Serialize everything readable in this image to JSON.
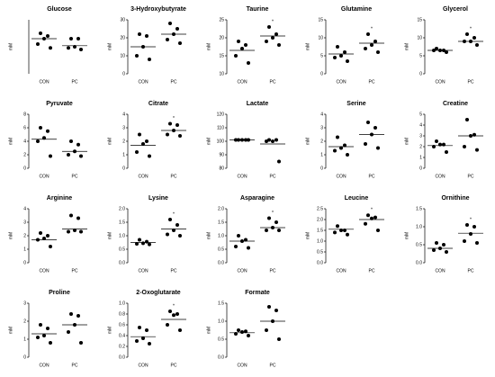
{
  "chart_data": [
    {
      "type": "dotplot",
      "title": "Glucose",
      "ylabel": "mM",
      "categories": [
        "CON",
        "PC"
      ],
      "values": [
        [
          7.5,
          7,
          6.5,
          5.5,
          4.8
        ],
        [
          6.5,
          6.5,
          5,
          4.8,
          4.5
        ]
      ],
      "means": [
        6.5,
        5.2
      ],
      "ylim": [
        0,
        10
      ]
    },
    {
      "type": "dotplot",
      "title": "3-Hydroxybutyrate",
      "ylabel": "mM",
      "categories": [
        "CON",
        "PC"
      ],
      "values": [
        [
          22,
          21,
          15,
          10,
          8
        ],
        [
          28,
          25,
          22,
          19,
          17
        ]
      ],
      "means": [
        15,
        22
      ],
      "ylim": [
        0,
        30
      ],
      "yticks": [
        0,
        10,
        20,
        30
      ]
    },
    {
      "type": "dotplot",
      "title": "Taurine",
      "ylabel": "mM",
      "categories": [
        "CON",
        "PC"
      ],
      "values": [
        [
          19,
          18,
          17,
          15,
          13
        ],
        [
          23,
          21,
          20,
          19,
          18
        ]
      ],
      "means": [
        16.5,
        20.5
      ],
      "ylim": [
        10,
        25
      ],
      "yticks": [
        10,
        15,
        20,
        25
      ],
      "annotation": "*"
    },
    {
      "type": "dotplot",
      "title": "Glutamine",
      "ylabel": "mM",
      "categories": [
        "CON",
        "PC"
      ],
      "values": [
        [
          7.5,
          6,
          5,
          4.5,
          3.5
        ],
        [
          11,
          9,
          8,
          7,
          6
        ]
      ],
      "means": [
        5.5,
        8.5
      ],
      "ylim": [
        0,
        15
      ],
      "yticks": [
        0,
        5,
        10,
        15
      ],
      "annotation": "*"
    },
    {
      "type": "dotplot",
      "title": "Glycerol",
      "ylabel": "mM",
      "categories": [
        "CON",
        "PC"
      ],
      "values": [
        [
          7,
          6.5,
          6.5,
          6.5,
          6
        ],
        [
          11,
          10,
          9,
          9,
          8
        ]
      ],
      "means": [
        6.5,
        9
      ],
      "ylim": [
        0,
        15
      ],
      "yticks": [
        0,
        5,
        10,
        15
      ],
      "annotation": "*"
    },
    {
      "type": "dotplot",
      "title": "Pyruvate",
      "ylabel": "mM",
      "categories": [
        "CON",
        "PC"
      ],
      "values": [
        [
          6,
          5.5,
          4.5,
          4,
          1.8
        ],
        [
          4,
          3.5,
          2.5,
          2,
          1.8
        ]
      ],
      "means": [
        4.3,
        2.5
      ],
      "ylim": [
        0,
        8
      ],
      "yticks": [
        0,
        2,
        4,
        6,
        8
      ]
    },
    {
      "type": "dotplot",
      "title": "Citrate",
      "ylabel": "mM",
      "categories": [
        "CON",
        "PC"
      ],
      "values": [
        [
          2.5,
          2,
          1.8,
          1.2,
          0.9
        ],
        [
          3.3,
          3.2,
          2.8,
          2.5,
          2.4
        ]
      ],
      "means": [
        1.7,
        2.8
      ],
      "ylim": [
        0,
        4
      ],
      "yticks": [
        0,
        1,
        2,
        3,
        4
      ],
      "annotation": "*"
    },
    {
      "type": "dotplot",
      "title": "Lactate",
      "ylabel": "mM",
      "categories": [
        "CON",
        "PC"
      ],
      "values": [
        [
          101,
          101,
          101,
          101,
          101
        ],
        [
          101,
          101,
          100,
          100,
          85
        ]
      ],
      "means": [
        101,
        98
      ],
      "ylim": [
        80,
        120
      ],
      "yticks": [
        80,
        90,
        100,
        110,
        120
      ]
    },
    {
      "type": "dotplot",
      "title": "Serine",
      "ylabel": "mM",
      "categories": [
        "CON",
        "PC"
      ],
      "values": [
        [
          2.3,
          1.7,
          1.5,
          1.3,
          1
        ],
        [
          3.4,
          3,
          2.5,
          1.8,
          1.5
        ]
      ],
      "means": [
        1.6,
        2.5
      ],
      "ylim": [
        0,
        4
      ],
      "yticks": [
        0,
        1,
        2,
        3,
        4
      ]
    },
    {
      "type": "dotplot",
      "title": "Creatine",
      "ylabel": "mM",
      "categories": [
        "CON",
        "PC"
      ],
      "values": [
        [
          2.5,
          2.2,
          2.2,
          2,
          1.5
        ],
        [
          4.5,
          3.1,
          3,
          2,
          1.7
        ]
      ],
      "means": [
        2.1,
        3
      ],
      "ylim": [
        0,
        5
      ],
      "yticks": [
        0,
        1,
        2,
        3,
        4,
        5
      ]
    },
    {
      "type": "dotplot",
      "title": "Arginine",
      "ylabel": "mM",
      "categories": [
        "CON",
        "PC"
      ],
      "values": [
        [
          2.2,
          2,
          1.8,
          1.7,
          1.2
        ],
        [
          3.5,
          3.3,
          2.4,
          2.3,
          2.3
        ]
      ],
      "means": [
        1.7,
        2.5
      ],
      "ylim": [
        0,
        4
      ],
      "yticks": [
        0,
        1,
        2,
        3,
        4
      ]
    },
    {
      "type": "dotplot",
      "title": "Lysine",
      "ylabel": "mM",
      "categories": [
        "CON",
        "PC"
      ],
      "values": [
        [
          0.85,
          0.78,
          0.72,
          0.7,
          0.68
        ],
        [
          1.6,
          1.4,
          1.2,
          1.05,
          1
        ]
      ],
      "means": [
        0.75,
        1.25
      ],
      "ylim": [
        0,
        2
      ],
      "yticks": [
        {
          "value": 0,
          "label": "0.0"
        },
        0.5,
        {
          "value": 1,
          "label": "1.0"
        },
        1.5,
        {
          "value": 2,
          "label": "2.0"
        }
      ],
      "annotation": "*"
    },
    {
      "type": "dotplot",
      "title": "Asparagine",
      "ylabel": "mM",
      "categories": [
        "CON",
        "PC"
      ],
      "values": [
        [
          1,
          0.85,
          0.8,
          0.6,
          0.55
        ],
        [
          1.65,
          1.5,
          1.3,
          1.2,
          1.2
        ]
      ],
      "means": [
        0.8,
        1.3
      ],
      "ylim": [
        0,
        2
      ],
      "yticks": [
        {
          "value": 0,
          "label": "0.0"
        },
        0.5,
        {
          "value": 1,
          "label": "1.0"
        },
        1.5,
        {
          "value": 2,
          "label": "2.0"
        }
      ],
      "annotation": "*"
    },
    {
      "type": "dotplot",
      "title": "Leucine",
      "ylabel": "mM",
      "categories": [
        "CON",
        "PC"
      ],
      "values": [
        [
          1.7,
          1.5,
          1.5,
          1.4,
          1.3
        ],
        [
          2.2,
          2.1,
          2.05,
          1.8,
          1.5
        ]
      ],
      "means": [
        1.55,
        2
      ],
      "ylim": [
        0,
        2.5
      ],
      "yticks": [
        {
          "value": 0,
          "label": "0.0"
        },
        0.5,
        {
          "value": 1,
          "label": "1.0"
        },
        1.5,
        {
          "value": 2,
          "label": "2.0"
        },
        2.5
      ],
      "annotation": "*"
    },
    {
      "type": "dotplot",
      "title": "Ornithine",
      "ylabel": "mM",
      "categories": [
        "CON",
        "PC"
      ],
      "values": [
        [
          0.55,
          0.5,
          0.4,
          0.35,
          0.3
        ],
        [
          1.05,
          1,
          0.8,
          0.6,
          0.55
        ]
      ],
      "means": [
        0.4,
        0.82
      ],
      "ylim": [
        0,
        1.5
      ],
      "yticks": [
        {
          "value": 0,
          "label": "0.0"
        },
        0.5,
        {
          "value": 1,
          "label": "1.0"
        },
        1.5
      ],
      "annotation": "*"
    },
    {
      "type": "dotplot",
      "title": "Proline",
      "ylabel": "mM",
      "categories": [
        "CON",
        "PC"
      ],
      "values": [
        [
          1.8,
          1.6,
          1.2,
          1.1,
          0.8
        ],
        [
          2.4,
          2.3,
          1.8,
          1.4,
          0.8
        ]
      ],
      "means": [
        1.3,
        1.8
      ],
      "ylim": [
        0,
        3
      ],
      "yticks": [
        0,
        1,
        2,
        3
      ]
    },
    {
      "type": "dotplot",
      "title": "2-Oxoglutarate",
      "ylabel": "mM",
      "categories": [
        "CON",
        "PC"
      ],
      "values": [
        [
          0.55,
          0.5,
          0.35,
          0.3,
          0.25
        ],
        [
          0.85,
          0.8,
          0.78,
          0.6,
          0.5
        ]
      ],
      "means": [
        0.38,
        0.7
      ],
      "ylim": [
        0,
        1
      ],
      "yticks": [
        {
          "value": 0,
          "label": "0.0"
        },
        0.2,
        0.4,
        0.6,
        0.8,
        {
          "value": 1,
          "label": "1.0"
        }
      ],
      "annotation": "*"
    },
    {
      "type": "dotplot",
      "title": "Formate",
      "ylabel": "mM",
      "categories": [
        "CON",
        "PC"
      ],
      "values": [
        [
          0.75,
          0.72,
          0.7,
          0.65,
          0.6
        ],
        [
          1.4,
          1.3,
          1,
          0.75,
          0.5
        ]
      ],
      "means": [
        0.68,
        1
      ],
      "ylim": [
        0,
        1.5
      ],
      "yticks": [
        {
          "value": 0,
          "label": "0.0"
        },
        0.5,
        {
          "value": 1,
          "label": "1.0"
        },
        1.5
      ]
    }
  ]
}
